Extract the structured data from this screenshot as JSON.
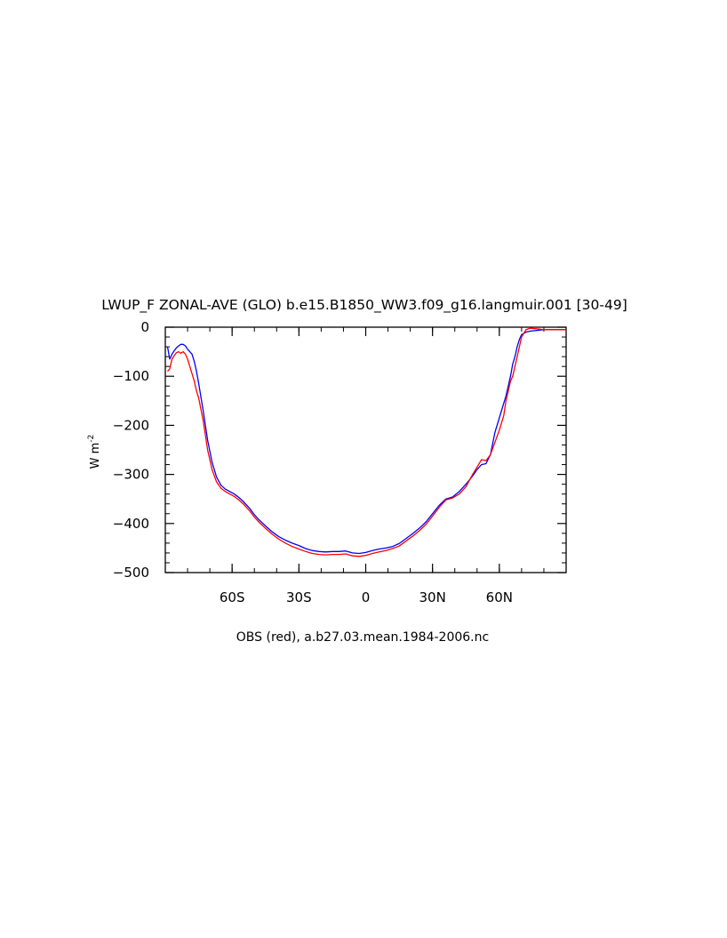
{
  "chart_data": {
    "type": "line",
    "title": "LWUP_F ZONAL-AVE (GLO) b.e15.B1850_WW3.f09_g16.langmuir.001  [30-49]",
    "subtitle": "OBS (red), a.b27.03.mean.1984-2006.nc",
    "ylabel_main": "W m",
    "ylabel_exp": "-2",
    "xlim": [
      -90,
      90
    ],
    "ylim": [
      -500,
      0
    ],
    "legend": "none",
    "grid": false,
    "x_ticks": [
      {
        "value": -60,
        "label": "60S"
      },
      {
        "value": -30,
        "label": "30S"
      },
      {
        "value": 0,
        "label": "0"
      },
      {
        "value": 30,
        "label": "30N"
      },
      {
        "value": 60,
        "label": "60N"
      }
    ],
    "y_ticks": [
      {
        "value": 0,
        "label": "0"
      },
      {
        "value": -100,
        "label": "−100"
      },
      {
        "value": -200,
        "label": "−200"
      },
      {
        "value": -300,
        "label": "−300"
      },
      {
        "value": -400,
        "label": "−400"
      },
      {
        "value": -500,
        "label": "−500"
      }
    ],
    "series": [
      {
        "color": "#0000ff",
        "x": [
          -89,
          -88,
          -87,
          -86,
          -85,
          -84,
          -83,
          -82,
          -81,
          -80,
          -79,
          -78,
          -77,
          -76,
          -75,
          -73,
          -71,
          -69,
          -67,
          -65,
          -63,
          -61,
          -59,
          -57,
          -55,
          -52,
          -50,
          -48,
          -45,
          -42,
          -39,
          -36,
          -33,
          -30,
          -27,
          -24,
          -21,
          -18,
          -15,
          -12,
          -9,
          -6,
          -3,
          0,
          3,
          6,
          9,
          12,
          15,
          18,
          21,
          24,
          27,
          30,
          33,
          36,
          39,
          42,
          45,
          48,
          50,
          52,
          54,
          56,
          58,
          60,
          62,
          63,
          64,
          65,
          66,
          67,
          68,
          69,
          70,
          72,
          74,
          76,
          78,
          80,
          82,
          84,
          86,
          88,
          90
        ],
        "values": [
          -40,
          -65,
          -55,
          -48,
          -42,
          -38,
          -35,
          -35,
          -38,
          -45,
          -50,
          -55,
          -70,
          -90,
          -115,
          -170,
          -230,
          -275,
          -305,
          -322,
          -330,
          -335,
          -340,
          -347,
          -355,
          -370,
          -382,
          -392,
          -405,
          -417,
          -427,
          -434,
          -440,
          -445,
          -451,
          -455,
          -457,
          -458,
          -457,
          -457,
          -456,
          -460,
          -461,
          -459,
          -455,
          -452,
          -450,
          -447,
          -441,
          -431,
          -421,
          -410,
          -397,
          -380,
          -363,
          -350,
          -346,
          -335,
          -320,
          -303,
          -290,
          -280,
          -278,
          -260,
          -215,
          -185,
          -155,
          -140,
          -120,
          -100,
          -75,
          -60,
          -40,
          -25,
          -15,
          -10,
          -8,
          -7,
          -6,
          -5,
          -5,
          -5,
          -5,
          -5,
          -5
        ]
      },
      {
        "color": "#ff0000",
        "x": [
          -89,
          -88,
          -87,
          -86,
          -85,
          -84,
          -83,
          -82,
          -81,
          -80,
          -79,
          -78,
          -77,
          -76,
          -75,
          -73,
          -71,
          -69,
          -67,
          -65,
          -63,
          -61,
          -59,
          -57,
          -55,
          -52,
          -50,
          -48,
          -45,
          -42,
          -39,
          -36,
          -33,
          -30,
          -27,
          -24,
          -21,
          -18,
          -15,
          -12,
          -9,
          -6,
          -3,
          0,
          3,
          6,
          9,
          12,
          15,
          18,
          21,
          24,
          27,
          30,
          33,
          36,
          39,
          42,
          45,
          48,
          50,
          52,
          54,
          56,
          58,
          60,
          62,
          63,
          64,
          65,
          66,
          67,
          68,
          69,
          70,
          72,
          74,
          76,
          78,
          80,
          82,
          84,
          86,
          88,
          90
        ],
        "values": [
          -90,
          -85,
          -65,
          -58,
          -52,
          -50,
          -53,
          -50,
          -55,
          -65,
          -80,
          -95,
          -110,
          -130,
          -145,
          -190,
          -250,
          -290,
          -315,
          -328,
          -335,
          -340,
          -345,
          -352,
          -360,
          -375,
          -387,
          -397,
          -410,
          -422,
          -432,
          -440,
          -447,
          -452,
          -457,
          -461,
          -463,
          -464,
          -463,
          -463,
          -462,
          -466,
          -467,
          -465,
          -461,
          -458,
          -455,
          -451,
          -446,
          -436,
          -426,
          -415,
          -402,
          -385,
          -367,
          -352,
          -348,
          -340,
          -325,
          -300,
          -285,
          -270,
          -272,
          -260,
          -235,
          -210,
          -180,
          -150,
          -130,
          -110,
          -100,
          -80,
          -60,
          -40,
          -20,
          -5,
          -2,
          -3,
          -4,
          -5,
          -5,
          -5,
          -5,
          -5,
          -5
        ]
      }
    ]
  }
}
